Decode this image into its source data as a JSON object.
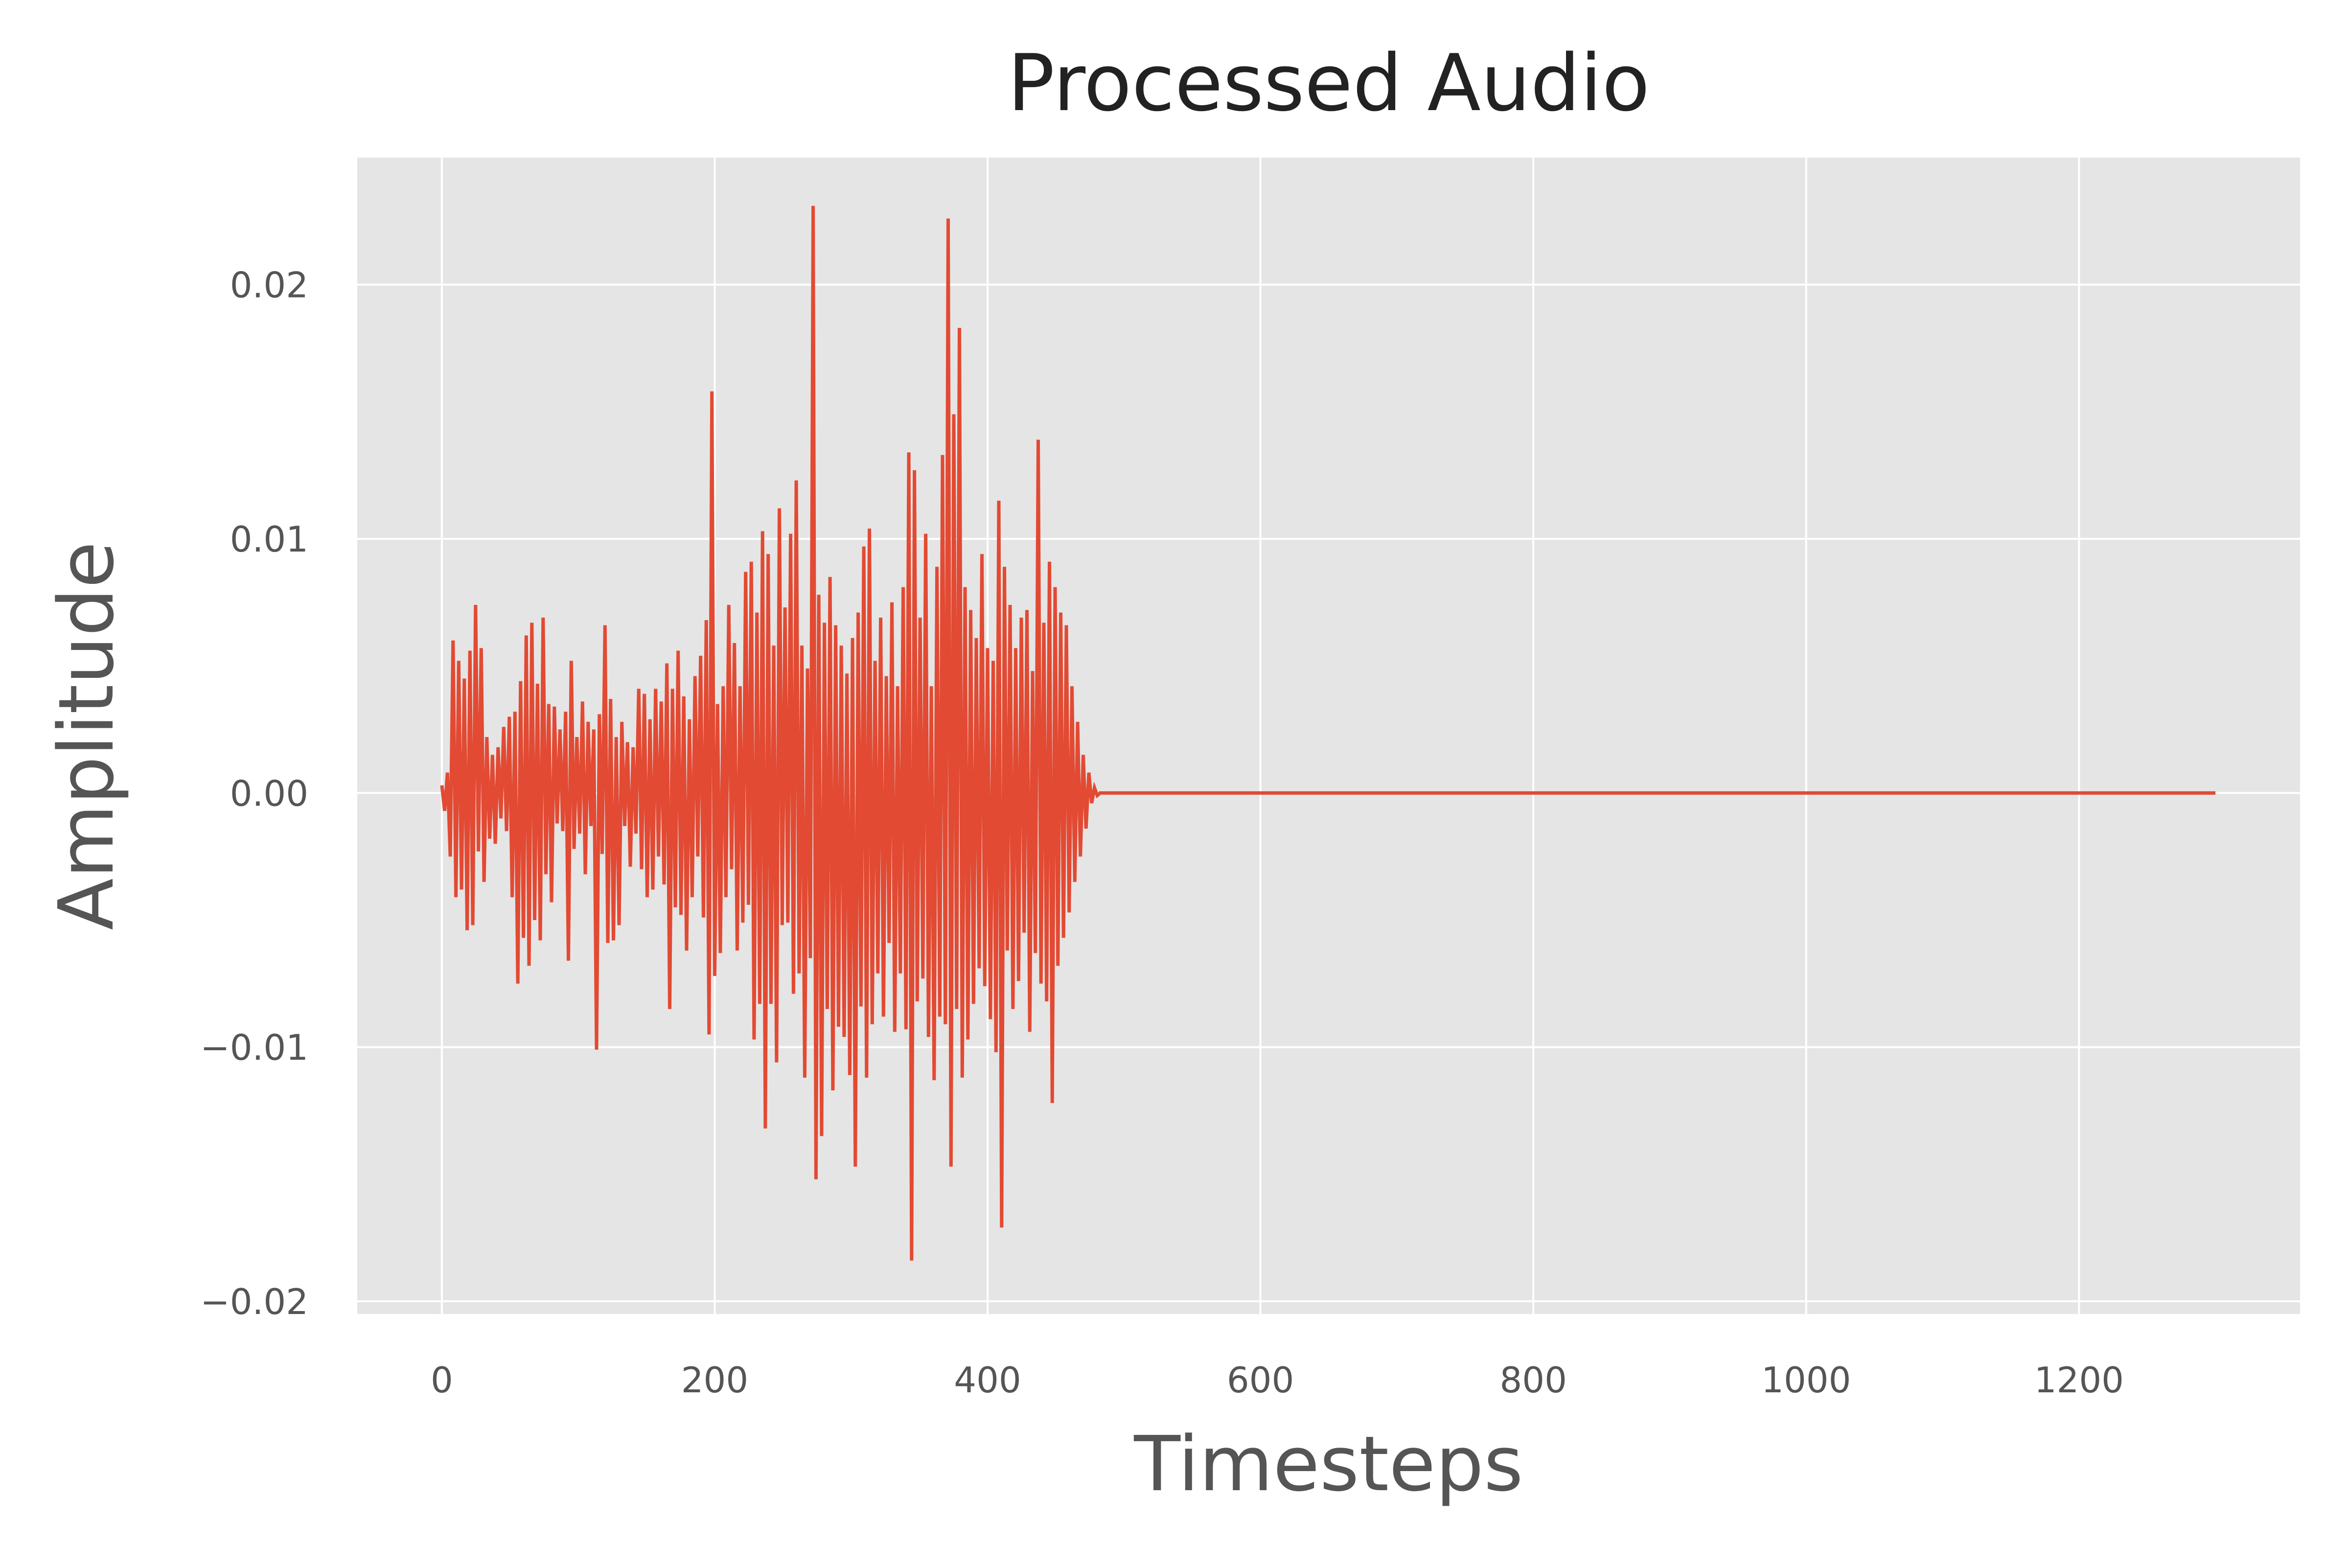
{
  "chart_data": {
    "type": "line",
    "title": "Processed Audio",
    "xlabel": "Timesteps",
    "ylabel": "Amplitude",
    "xlim": [
      -62,
      1362
    ],
    "ylim": [
      -0.0205,
      0.025
    ],
    "xticks": [
      0,
      200,
      400,
      600,
      800,
      1000,
      1200
    ],
    "xtick_labels": [
      "0",
      "200",
      "400",
      "600",
      "800",
      "1000",
      "1200"
    ],
    "yticks": [
      -0.02,
      -0.01,
      0.0,
      0.01,
      0.02
    ],
    "ytick_labels": [
      "−0.02",
      "−0.01",
      "0.00",
      "0.01",
      "0.02"
    ],
    "grid": true,
    "style": "ggplot",
    "colors": {
      "line": "#E24A33",
      "plot_bg": "#E5E5E5",
      "grid": "#FFFFFF",
      "title": "#222222",
      "labels": "#555555"
    },
    "series": [
      {
        "x_start": 0,
        "x_step": 1,
        "values": [
          0.0003,
          -0.0007,
          0.0008,
          -0.0025,
          0.006,
          -0.0041,
          0.0052,
          -0.0038,
          0.0045,
          -0.0054,
          0.0056,
          -0.0052,
          0.0074,
          -0.0023,
          0.0057,
          -0.0035,
          0.0022,
          -0.0018,
          0.0015,
          -0.002,
          0.0018,
          -0.001,
          0.0026,
          -0.0015,
          0.003,
          -0.0041,
          0.0032,
          -0.0075,
          0.0044,
          -0.0057,
          0.0062,
          -0.0068,
          0.0067,
          -0.005,
          0.0043,
          -0.0058,
          0.0069,
          -0.0032,
          0.0035,
          -0.0043,
          0.0034,
          -0.0012,
          0.0025,
          -0.0015,
          0.0032,
          -0.0066,
          0.0052,
          -0.0022,
          0.0022,
          -0.0016,
          0.0036,
          -0.0032,
          0.0028,
          -0.0013,
          0.0025,
          -0.0101,
          0.0031,
          -0.0024,
          0.0066,
          -0.0059,
          0.0037,
          -0.0058,
          0.0022,
          -0.0052,
          0.0028,
          -0.0013,
          0.002,
          -0.0029,
          0.0018,
          -0.0016,
          0.0041,
          -0.003,
          0.0039,
          -0.0041,
          0.0029,
          -0.0038,
          0.0041,
          -0.0025,
          0.0036,
          -0.0036,
          0.0051,
          -0.0085,
          0.0041,
          -0.0045,
          0.0056,
          -0.0048,
          0.0038,
          -0.0062,
          0.0029,
          -0.0041,
          0.0046,
          -0.0025,
          0.0054,
          -0.0049,
          0.0068,
          -0.0095,
          0.0158,
          -0.0072,
          0.0035,
          -0.0063,
          0.0042,
          -0.0041,
          0.0074,
          -0.003,
          0.0059,
          -0.0062,
          0.0042,
          -0.0051,
          0.0087,
          -0.0044,
          0.0091,
          -0.0097,
          0.0071,
          -0.0083,
          0.0103,
          -0.0132,
          0.0094,
          -0.0083,
          0.0058,
          -0.0106,
          0.0112,
          -0.0052,
          0.0073,
          -0.0051,
          0.0102,
          -0.0079,
          0.0123,
          -0.0071,
          0.0058,
          -0.0112,
          0.0049,
          -0.0065,
          0.0231,
          -0.0152,
          0.0078,
          -0.0135,
          0.0067,
          -0.0085,
          0.0085,
          -0.0117,
          0.0066,
          -0.0092,
          0.0058,
          -0.0096,
          0.0047,
          -0.0111,
          0.0061,
          -0.0147,
          0.0071,
          -0.0084,
          0.0097,
          -0.0112,
          0.0104,
          -0.0091,
          0.0052,
          -0.0071,
          0.0069,
          -0.0088,
          0.0046,
          -0.0059,
          0.0075,
          -0.0094,
          0.0042,
          -0.0071,
          0.0081,
          -0.0093,
          0.0134,
          -0.0184,
          0.0127,
          -0.0082,
          0.0069,
          -0.0073,
          0.0102,
          -0.0096,
          0.0042,
          -0.0113,
          0.0089,
          -0.0088,
          0.0133,
          -0.0091,
          0.0226,
          -0.0147,
          0.0149,
          -0.0085,
          0.0183,
          -0.0112,
          0.0081,
          -0.0097,
          0.0072,
          -0.0083,
          0.0061,
          -0.0069,
          0.0094,
          -0.0076,
          0.0057,
          -0.0089,
          0.0052,
          -0.0102,
          0.0115,
          -0.0171,
          0.0089,
          -0.0062,
          0.0074,
          -0.0085,
          0.0057,
          -0.0074,
          0.0069,
          -0.0055,
          0.0072,
          -0.0094,
          0.0048,
          -0.0063,
          0.0139,
          -0.0075,
          0.0067,
          -0.0082,
          0.0091,
          -0.0122,
          0.0081,
          -0.0068,
          0.0071,
          -0.0057,
          0.0066,
          -0.0047,
          0.0042,
          -0.0035,
          0.0028,
          -0.0025,
          0.0015,
          -0.0014,
          0.0008,
          -0.0004,
          0.0002,
          -0.0001,
          0.0,
          0.0,
          0.0,
          0.0,
          0.0,
          0.0,
          0.0,
          0.0,
          0.0,
          0.0,
          0.0,
          0.0,
          0.0,
          0.0,
          0.0,
          0.0,
          0.0,
          0.0,
          0.0,
          0.0,
          0.0,
          0.0,
          0.0,
          0.0,
          0.0,
          0.0,
          0.0,
          0.0,
          0.0,
          0.0,
          0.0,
          0.0,
          0.0,
          0.0,
          0.0,
          0.0,
          0.0,
          0.0,
          0.0,
          0.0,
          0.0,
          0.0,
          0.0,
          0.0,
          0.0,
          0.0,
          0.0,
          0.0,
          0.0,
          0.0,
          0.0,
          0.0,
          0.0,
          0.0,
          0.0,
          0.0,
          0.0,
          0.0
        ]
      }
    ]
  }
}
